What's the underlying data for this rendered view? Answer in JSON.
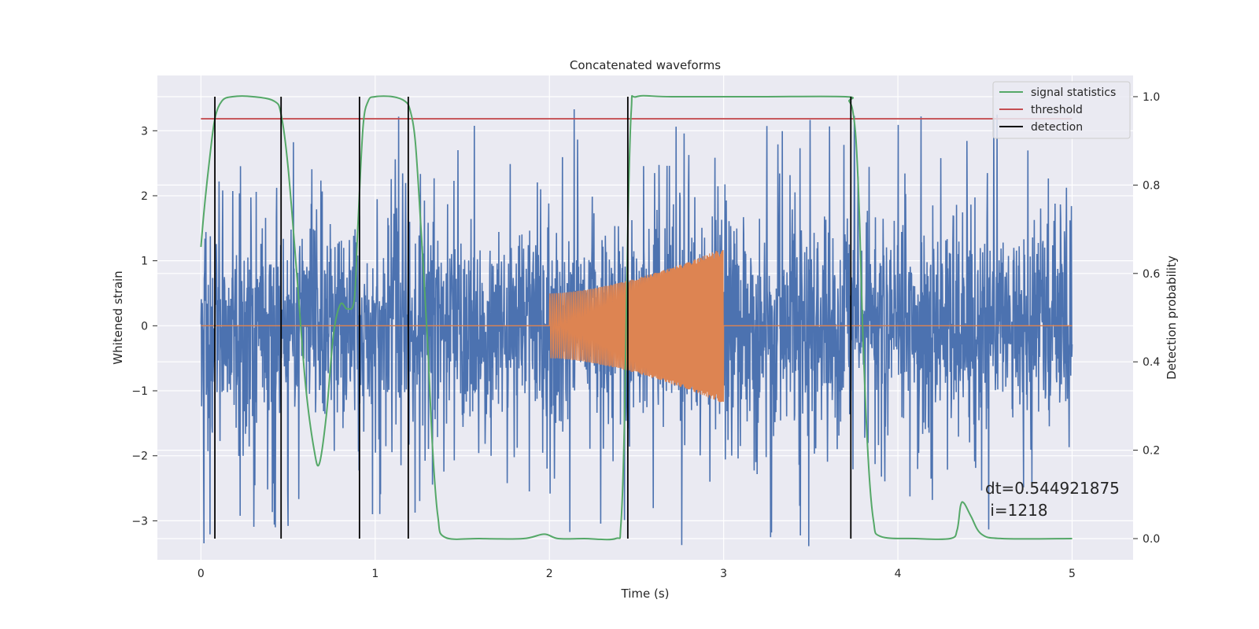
{
  "chart_data": {
    "type": "line",
    "title": "Concatenated waveforms",
    "xlabel": "Time (s)",
    "ylabel": "Whitened strain",
    "y2label": "Detection probability",
    "xlim": [
      -0.25,
      5.35
    ],
    "ylim": [
      -3.6,
      3.85
    ],
    "y2lim": [
      -0.048,
      1.048
    ],
    "x_ticks": [
      0,
      1,
      2,
      3,
      4,
      5
    ],
    "y_ticks": [
      -3,
      -2,
      -1,
      0,
      1,
      2,
      3
    ],
    "y2_ticks": [
      0.0,
      0.2,
      0.4,
      0.6,
      0.8,
      1.0
    ],
    "x_tick_labels": [
      "0",
      "1",
      "2",
      "3",
      "4",
      "5"
    ],
    "y_tick_labels": [
      "−3",
      "−2",
      "−1",
      "0",
      "1",
      "2",
      "3"
    ],
    "y2_tick_labels": [
      "0.0",
      "0.2",
      "0.4",
      "0.6",
      "0.8",
      "1.0"
    ],
    "grid": true,
    "legend_position": "top-right",
    "series": [
      {
        "name": "",
        "axis": "left",
        "color": "#4c72b0",
        "kind": "noise",
        "x_range": [
          0,
          5
        ],
        "amplitude_envelope": {
          "typical": 0.9,
          "peak": 3.4
        }
      },
      {
        "name": "",
        "axis": "left",
        "color": "#dd8452",
        "kind": "chirp",
        "x_range": [
          0,
          5
        ],
        "signal_window": [
          2.0,
          3.0
        ],
        "amplitude_start": 0.5,
        "amplitude_end": 1.2
      },
      {
        "name": "signal statistics",
        "axis": "right",
        "color": "#55a868",
        "x": [
          0,
          0.02,
          0.05,
          0.08,
          0.12,
          0.18,
          0.3,
          0.42,
          0.46,
          0.5,
          0.55,
          0.6,
          0.65,
          0.68,
          0.72,
          0.76,
          0.8,
          0.84,
          0.88,
          0.9,
          0.93,
          0.96,
          1.0,
          1.1,
          1.17,
          1.2,
          1.23,
          1.26,
          1.3,
          1.33,
          1.36,
          1.4,
          1.6,
          1.85,
          1.97,
          2.05,
          2.2,
          2.38,
          2.41,
          2.43,
          2.45,
          2.47,
          2.5,
          2.7,
          3.2,
          3.7,
          3.72,
          3.74,
          3.76,
          3.78,
          3.8,
          3.83,
          3.86,
          3.9,
          4.1,
          4.3,
          4.34,
          4.36,
          4.38,
          4.42,
          4.48,
          4.6,
          5.0
        ],
        "y": [
          0.66,
          0.75,
          0.86,
          0.95,
          0.99,
          1.0,
          1.0,
          0.99,
          0.96,
          0.84,
          0.6,
          0.35,
          0.2,
          0.17,
          0.28,
          0.46,
          0.53,
          0.52,
          0.54,
          0.7,
          0.93,
          0.99,
          1.0,
          1.0,
          0.99,
          0.97,
          0.9,
          0.72,
          0.45,
          0.2,
          0.05,
          0.003,
          0.0,
          0.0,
          0.01,
          0.0,
          0.0,
          0.0,
          0.03,
          0.25,
          0.7,
          0.97,
          1.0,
          1.0,
          1.0,
          1.0,
          0.99,
          0.97,
          0.9,
          0.72,
          0.45,
          0.18,
          0.04,
          0.005,
          0.0,
          0.0,
          0.02,
          0.075,
          0.08,
          0.05,
          0.01,
          0.0,
          0.0
        ]
      },
      {
        "name": "threshold",
        "axis": "right",
        "color": "#c44e52",
        "x": [
          0,
          5
        ],
        "y": [
          0.95,
          0.95
        ]
      },
      {
        "name": "detection",
        "axis": "right",
        "color": "#000000",
        "kind": "vertical_lines",
        "x": [
          0.08,
          0.46,
          0.91,
          1.19,
          2.45,
          3.73
        ],
        "y_range": [
          0.0,
          1.0
        ]
      }
    ],
    "annotation": {
      "line1": "dt=0.544921875",
      "line2": " i=1218"
    }
  }
}
